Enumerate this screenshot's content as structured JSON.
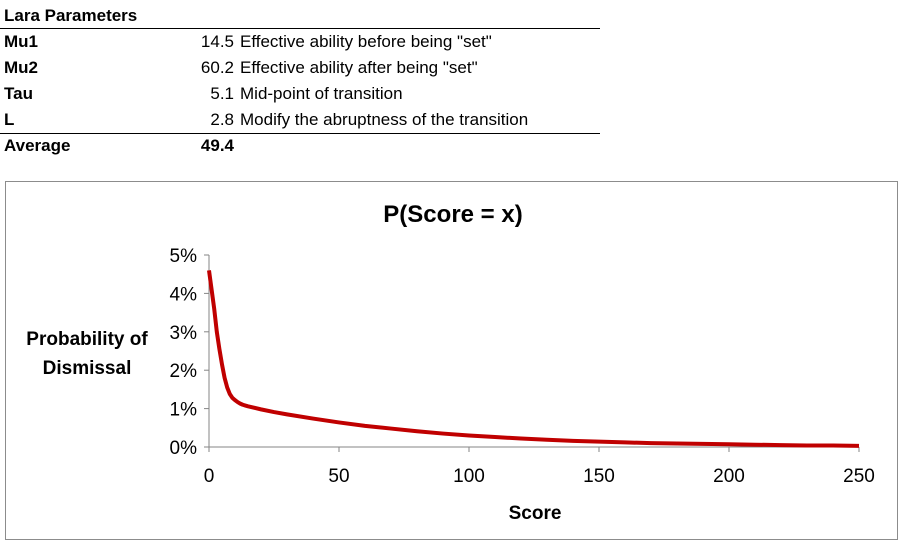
{
  "params_table": {
    "title": "Lara Parameters",
    "rows": [
      {
        "name": "Mu1",
        "value": "14.5",
        "desc": "Effective ability before being \"set\""
      },
      {
        "name": "Mu2",
        "value": "60.2",
        "desc": "Effective ability after being \"set\""
      },
      {
        "name": "Tau",
        "value": "5.1",
        "desc": "Mid-point of transition"
      },
      {
        "name": "L",
        "value": "2.8",
        "desc": "Modify the abruptness of the transition"
      }
    ],
    "average_label": "Average",
    "average_value": "49.4"
  },
  "chart_data": {
    "type": "line",
    "title": "P(Score = x)",
    "xlabel": "Score",
    "ylabel_line1": "Probability of",
    "ylabel_line2": "Dismissal",
    "xlim": [
      0,
      250
    ],
    "ylim": [
      0,
      5
    ],
    "xticks": [
      0,
      50,
      100,
      150,
      200,
      250
    ],
    "yticks": [
      "0%",
      "1%",
      "2%",
      "3%",
      "4%",
      "5%"
    ],
    "grid": false,
    "series": [
      {
        "color": "#c00000",
        "x": [
          0,
          1,
          2,
          3,
          4,
          5,
          6,
          7,
          8,
          9,
          10,
          11,
          12,
          13,
          14,
          15,
          20,
          25,
          30,
          40,
          50,
          60,
          70,
          80,
          90,
          100,
          110,
          120,
          130,
          140,
          150,
          160,
          170,
          180,
          190,
          200,
          210,
          220,
          230,
          240,
          250
        ],
        "y": [
          4.6,
          4.1,
          3.6,
          3.0,
          2.55,
          2.15,
          1.8,
          1.55,
          1.38,
          1.28,
          1.22,
          1.17,
          1.13,
          1.1,
          1.08,
          1.06,
          0.98,
          0.91,
          0.85,
          0.74,
          0.64,
          0.55,
          0.48,
          0.41,
          0.35,
          0.3,
          0.26,
          0.22,
          0.19,
          0.16,
          0.14,
          0.12,
          0.1,
          0.09,
          0.08,
          0.07,
          0.06,
          0.05,
          0.04,
          0.04,
          0.03
        ]
      }
    ]
  }
}
